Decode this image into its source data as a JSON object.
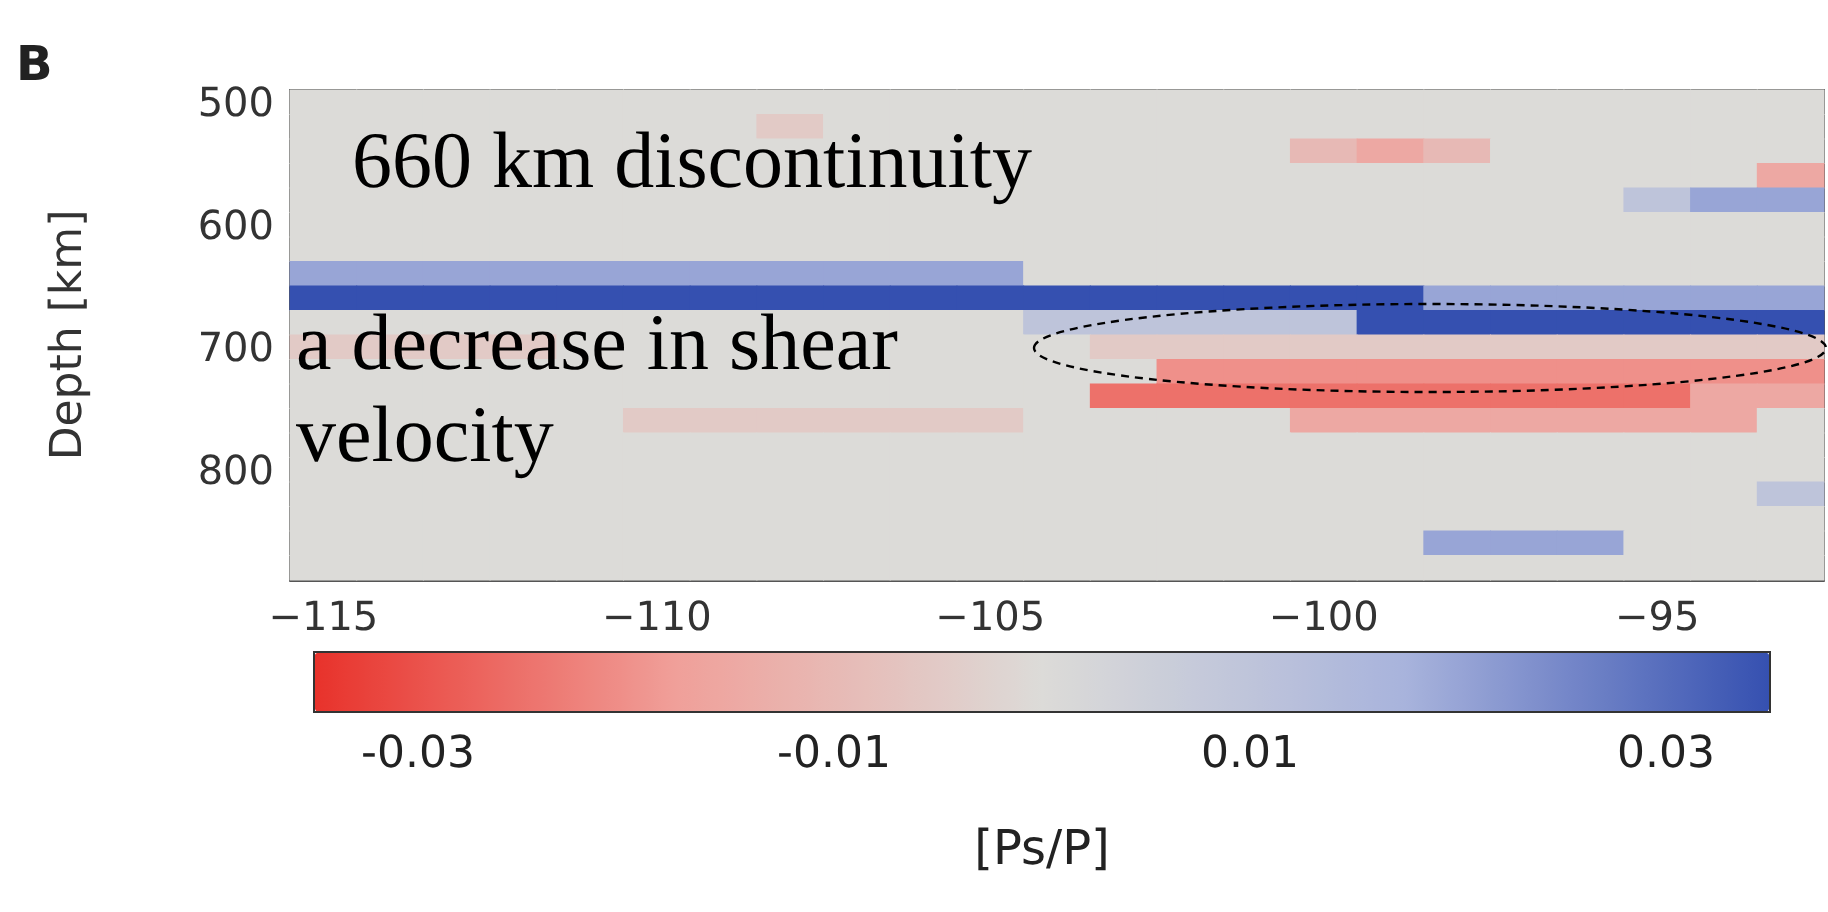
{
  "chart_data": {
    "type": "heatmap",
    "title": "B",
    "ylabel": "Depth [km]",
    "clabel": "[Ps/P]",
    "categories": [
      "−115",
      null,
      null,
      null,
      null,
      "−110",
      null,
      null,
      null,
      null,
      "−105",
      null,
      null,
      null,
      null,
      "−100",
      null,
      null,
      null,
      null,
      "−95",
      null,
      null
    ],
    "y_categories": [
      "500",
      null,
      null,
      null,
      null,
      "600",
      null,
      null,
      null,
      null,
      "700",
      null,
      null,
      null,
      null,
      "800",
      null,
      null,
      null,
      null
    ],
    "cells": [
      [
        0,
        0,
        0,
        0,
        0,
        0,
        0,
        0,
        0,
        0,
        0,
        0,
        0,
        0,
        0,
        0,
        0,
        0,
        0,
        0,
        0,
        0,
        0
      ],
      [
        0,
        0,
        0,
        0,
        0,
        0,
        0,
        -0.005,
        0,
        0,
        0,
        0,
        0,
        0,
        0,
        0,
        0,
        0,
        0,
        0,
        0,
        0,
        0
      ],
      [
        0,
        0,
        0,
        0,
        0,
        0,
        0,
        0,
        0,
        0,
        0,
        0,
        0,
        0,
        0,
        -0.01,
        -0.015,
        -0.01,
        0,
        0,
        0,
        0,
        0
      ],
      [
        0,
        0,
        0,
        0,
        0,
        0,
        0,
        0,
        0,
        0,
        0,
        0,
        0,
        0,
        0,
        0,
        0,
        0,
        0,
        0,
        0,
        0,
        -0.015
      ],
      [
        0,
        0,
        0,
        0,
        0,
        0,
        0,
        0,
        0,
        0,
        0,
        0,
        0,
        0,
        0,
        0,
        0,
        0,
        0,
        0,
        0.01,
        0.02,
        0.02
      ],
      [
        0,
        0,
        0,
        0,
        0,
        0,
        0,
        0,
        0,
        0,
        0,
        0,
        0,
        0,
        0,
        0,
        0,
        0,
        0,
        0,
        0,
        0,
        0
      ],
      [
        0,
        0,
        0,
        0,
        0,
        0,
        0,
        0,
        0,
        0,
        0,
        0,
        0,
        0,
        0,
        0,
        0,
        0,
        0,
        0,
        0,
        0,
        0
      ],
      [
        0.02,
        0.02,
        0.02,
        0.02,
        0.02,
        0.02,
        0.02,
        0.02,
        0.02,
        0.02,
        0.02,
        0,
        0,
        0,
        0,
        0,
        0,
        0,
        0,
        0,
        0,
        0,
        0
      ],
      [
        0.035,
        0.035,
        0.035,
        0.035,
        0.035,
        0.035,
        0.035,
        0.035,
        0.035,
        0.035,
        0.035,
        0.035,
        0.035,
        0.035,
        0.035,
        0.035,
        0.035,
        0.02,
        0.02,
        0.02,
        0.02,
        0.02,
        0.02
      ],
      [
        0,
        0,
        0,
        0,
        0,
        0,
        0,
        0,
        0,
        0,
        0,
        0.01,
        0.01,
        0.01,
        0.01,
        0.01,
        0.035,
        0.035,
        0.035,
        0.035,
        0.035,
        0.035,
        0.035
      ],
      [
        -0.005,
        -0.005,
        -0.005,
        -0.005,
        0,
        0,
        0,
        0,
        0,
        0,
        0,
        0,
        -0.005,
        -0.005,
        -0.005,
        -0.005,
        -0.005,
        -0.005,
        -0.005,
        -0.005,
        -0.005,
        -0.005,
        -0.005
      ],
      [
        0,
        0,
        0,
        0,
        0,
        0,
        0,
        0,
        0,
        0,
        0,
        0,
        0,
        -0.02,
        -0.02,
        -0.02,
        -0.02,
        -0.02,
        -0.02,
        -0.02,
        -0.02,
        -0.02,
        -0.02
      ],
      [
        0,
        0,
        0,
        0,
        0,
        0,
        0,
        0,
        0,
        0,
        0,
        0,
        -0.025,
        -0.025,
        -0.025,
        -0.025,
        -0.025,
        -0.025,
        -0.025,
        -0.025,
        -0.025,
        -0.015,
        -0.015
      ],
      [
        0,
        0,
        0,
        0,
        0,
        -0.005,
        -0.005,
        -0.005,
        -0.005,
        -0.005,
        -0.005,
        0,
        0,
        0,
        0,
        -0.015,
        -0.015,
        -0.015,
        -0.015,
        -0.015,
        -0.015,
        -0.015,
        0
      ],
      [
        0,
        0,
        0,
        0,
        0,
        0,
        0,
        0,
        0,
        0,
        0,
        0,
        0,
        0,
        0,
        0,
        0,
        0,
        0,
        0,
        0,
        0,
        0
      ],
      [
        0,
        0,
        0,
        0,
        0,
        0,
        0,
        0,
        0,
        0,
        0,
        0,
        0,
        0,
        0,
        0,
        0,
        0,
        0,
        0,
        0,
        0,
        0
      ],
      [
        0,
        0,
        0,
        0,
        0,
        0,
        0,
        0,
        0,
        0,
        0,
        0,
        0,
        0,
        0,
        0,
        0,
        0,
        0,
        0,
        0,
        0,
        0.01
      ],
      [
        0,
        0,
        0,
        0,
        0,
        0,
        0,
        0,
        0,
        0,
        0,
        0,
        0,
        0,
        0,
        0,
        0,
        0,
        0,
        0,
        0,
        0,
        0
      ],
      [
        0,
        0,
        0,
        0,
        0,
        0,
        0,
        0,
        0,
        0,
        0,
        0,
        0,
        0,
        0,
        0,
        0,
        0.02,
        0.02,
        0.02,
        0,
        0,
        0
      ],
      [
        0,
        0,
        0,
        0,
        0,
        0,
        0,
        0,
        0,
        0,
        0,
        0,
        0,
        0,
        0,
        0,
        0,
        0,
        0,
        0,
        0,
        0,
        0
      ]
    ],
    "clim": [
      -0.035,
      0.035
    ],
    "cticks": [
      -0.03,
      -0.01,
      0.01,
      0.03
    ],
    "annotations": [
      "660 km discontinuity",
      "a decrease in shear velocity"
    ]
  }
}
